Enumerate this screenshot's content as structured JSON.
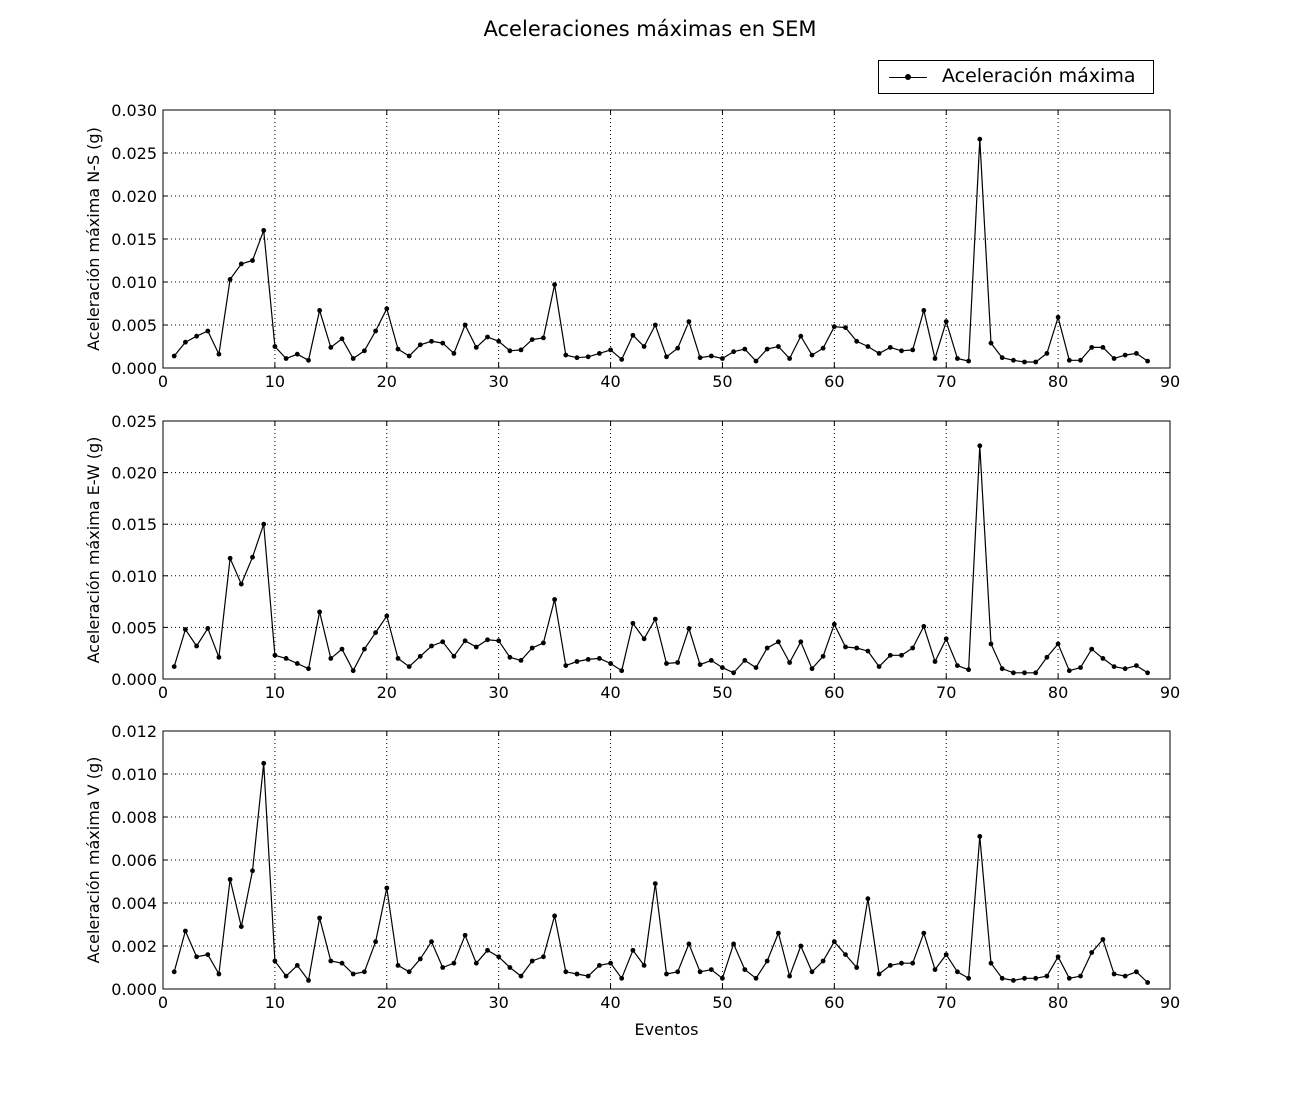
{
  "title": "Aceleraciones máximas en SEM",
  "legend": {
    "label": "Aceleración máxima"
  },
  "colors": {
    "line": "#000000",
    "grid": "#000000",
    "background": "#ffffff"
  },
  "chart_data": [
    {
      "type": "line",
      "title": "Aceleraciones máximas en SEM",
      "xlabel": "",
      "ylabel": "Aceleración máxima N-S (g)",
      "xlim": [
        0,
        90
      ],
      "ylim": [
        0,
        0.03
      ],
      "xticks": [
        0,
        10,
        20,
        30,
        40,
        50,
        60,
        70,
        80,
        90
      ],
      "yticks": [
        "0.000",
        "0.005",
        "0.010",
        "0.015",
        "0.020",
        "0.025",
        "0.030"
      ],
      "grid": true,
      "legend_position": "top-right",
      "series": [
        {
          "name": "Aceleración máxima",
          "x": [
            1,
            2,
            3,
            4,
            5,
            6,
            7,
            8,
            9,
            10,
            11,
            12,
            13,
            14,
            15,
            16,
            17,
            18,
            19,
            20,
            21,
            22,
            23,
            24,
            25,
            26,
            27,
            28,
            29,
            30,
            31,
            32,
            33,
            34,
            35,
            36,
            37,
            38,
            39,
            40,
            41,
            42,
            43,
            44,
            45,
            46,
            47,
            48,
            49,
            50,
            51,
            52,
            53,
            54,
            55,
            56,
            57,
            58,
            59,
            60,
            61,
            62,
            63,
            64,
            65,
            66,
            67,
            68,
            69,
            70,
            71,
            72,
            73,
            74,
            75,
            76,
            77,
            78,
            79,
            80,
            81,
            82,
            83,
            84,
            85,
            86,
            87,
            88
          ],
          "y": [
            0.0014,
            0.003,
            0.0037,
            0.0043,
            0.0016,
            0.0103,
            0.0121,
            0.0125,
            0.016,
            0.0025,
            0.0011,
            0.0016,
            0.0009,
            0.0067,
            0.0024,
            0.0034,
            0.0011,
            0.002,
            0.0043,
            0.0069,
            0.0022,
            0.0014,
            0.0027,
            0.0031,
            0.0029,
            0.0017,
            0.005,
            0.0024,
            0.0036,
            0.0031,
            0.002,
            0.0021,
            0.0033,
            0.0035,
            0.0097,
            0.0015,
            0.0012,
            0.0013,
            0.0017,
            0.0021,
            0.001,
            0.0038,
            0.0025,
            0.005,
            0.0013,
            0.0023,
            0.0054,
            0.0012,
            0.0014,
            0.0011,
            0.0019,
            0.0022,
            0.0008,
            0.0022,
            0.0025,
            0.0011,
            0.0037,
            0.0015,
            0.0023,
            0.0048,
            0.0047,
            0.0031,
            0.0025,
            0.0017,
            0.0024,
            0.002,
            0.0021,
            0.0067,
            0.0011,
            0.0054,
            0.0011,
            0.0008,
            0.0266,
            0.0029,
            0.0012,
            0.0009,
            0.0007,
            0.0007,
            0.0017,
            0.0059,
            0.0009,
            0.0009,
            0.0024,
            0.0024,
            0.0011,
            0.0015,
            0.0017,
            0.0008
          ]
        }
      ]
    },
    {
      "type": "line",
      "xlabel": "",
      "ylabel": "Aceleración máxima E-W (g)",
      "xlim": [
        0,
        90
      ],
      "ylim": [
        0,
        0.025
      ],
      "xticks": [
        0,
        10,
        20,
        30,
        40,
        50,
        60,
        70,
        80,
        90
      ],
      "yticks": [
        "0.000",
        "0.005",
        "0.010",
        "0.015",
        "0.020",
        "0.025"
      ],
      "grid": true,
      "series": [
        {
          "name": "Aceleración máxima",
          "x": [
            1,
            2,
            3,
            4,
            5,
            6,
            7,
            8,
            9,
            10,
            11,
            12,
            13,
            14,
            15,
            16,
            17,
            18,
            19,
            20,
            21,
            22,
            23,
            24,
            25,
            26,
            27,
            28,
            29,
            30,
            31,
            32,
            33,
            34,
            35,
            36,
            37,
            38,
            39,
            40,
            41,
            42,
            43,
            44,
            45,
            46,
            47,
            48,
            49,
            50,
            51,
            52,
            53,
            54,
            55,
            56,
            57,
            58,
            59,
            60,
            61,
            62,
            63,
            64,
            65,
            66,
            67,
            68,
            69,
            70,
            71,
            72,
            73,
            74,
            75,
            76,
            77,
            78,
            79,
            80,
            81,
            82,
            83,
            84,
            85,
            86,
            87,
            88
          ],
          "y": [
            0.0012,
            0.0048,
            0.0032,
            0.0049,
            0.0021,
            0.0117,
            0.0092,
            0.0118,
            0.015,
            0.0023,
            0.002,
            0.0015,
            0.001,
            0.0065,
            0.002,
            0.0029,
            0.0008,
            0.0029,
            0.0045,
            0.0061,
            0.002,
            0.0012,
            0.0022,
            0.0032,
            0.0036,
            0.0022,
            0.0037,
            0.0031,
            0.0038,
            0.0037,
            0.0021,
            0.0018,
            0.003,
            0.0035,
            0.0077,
            0.0013,
            0.0017,
            0.0019,
            0.002,
            0.0015,
            0.0008,
            0.0054,
            0.0039,
            0.0058,
            0.0015,
            0.0016,
            0.0049,
            0.0014,
            0.0018,
            0.0011,
            0.0006,
            0.0018,
            0.0011,
            0.003,
            0.0036,
            0.0016,
            0.0036,
            0.001,
            0.0022,
            0.0053,
            0.0031,
            0.003,
            0.0027,
            0.0012,
            0.0023,
            0.0023,
            0.003,
            0.0051,
            0.0017,
            0.0039,
            0.0013,
            0.0009,
            0.0226,
            0.0034,
            0.001,
            0.0006,
            0.0006,
            0.0006,
            0.0021,
            0.0034,
            0.0008,
            0.0011,
            0.0029,
            0.002,
            0.0012,
            0.001,
            0.0013,
            0.0006
          ]
        }
      ]
    },
    {
      "type": "line",
      "xlabel": "Eventos",
      "ylabel": "Aceleración máxima V (g)",
      "xlim": [
        0,
        90
      ],
      "ylim": [
        0,
        0.012
      ],
      "xticks": [
        0,
        10,
        20,
        30,
        40,
        50,
        60,
        70,
        80,
        90
      ],
      "yticks": [
        "0.000",
        "0.002",
        "0.004",
        "0.006",
        "0.008",
        "0.010",
        "0.012"
      ],
      "grid": true,
      "series": [
        {
          "name": "Aceleración máxima",
          "x": [
            1,
            2,
            3,
            4,
            5,
            6,
            7,
            8,
            9,
            10,
            11,
            12,
            13,
            14,
            15,
            16,
            17,
            18,
            19,
            20,
            21,
            22,
            23,
            24,
            25,
            26,
            27,
            28,
            29,
            30,
            31,
            32,
            33,
            34,
            35,
            36,
            37,
            38,
            39,
            40,
            41,
            42,
            43,
            44,
            45,
            46,
            47,
            48,
            49,
            50,
            51,
            52,
            53,
            54,
            55,
            56,
            57,
            58,
            59,
            60,
            61,
            62,
            63,
            64,
            65,
            66,
            67,
            68,
            69,
            70,
            71,
            72,
            73,
            74,
            75,
            76,
            77,
            78,
            79,
            80,
            81,
            82,
            83,
            84,
            85,
            86,
            87,
            88
          ],
          "y": [
            0.0008,
            0.0027,
            0.0015,
            0.0016,
            0.0007,
            0.0051,
            0.0029,
            0.0055,
            0.0105,
            0.0013,
            0.0006,
            0.0011,
            0.0004,
            0.0033,
            0.0013,
            0.0012,
            0.0007,
            0.0008,
            0.0022,
            0.0047,
            0.0011,
            0.0008,
            0.0014,
            0.0022,
            0.001,
            0.0012,
            0.0025,
            0.0012,
            0.0018,
            0.0015,
            0.001,
            0.0006,
            0.0013,
            0.0015,
            0.0034,
            0.0008,
            0.0007,
            0.0006,
            0.0011,
            0.0012,
            0.0005,
            0.0018,
            0.0011,
            0.0049,
            0.0007,
            0.0008,
            0.0021,
            0.0008,
            0.0009,
            0.0005,
            0.0021,
            0.0009,
            0.0005,
            0.0013,
            0.0026,
            0.0006,
            0.002,
            0.0008,
            0.0013,
            0.0022,
            0.0016,
            0.001,
            0.0042,
            0.0007,
            0.0011,
            0.0012,
            0.0012,
            0.0026,
            0.0009,
            0.0016,
            0.0008,
            0.0005,
            0.0071,
            0.0012,
            0.0005,
            0.0004,
            0.0005,
            0.0005,
            0.0006,
            0.0015,
            0.0005,
            0.0006,
            0.0017,
            0.0023,
            0.0007,
            0.0006,
            0.0008,
            0.0003
          ]
        }
      ]
    }
  ]
}
